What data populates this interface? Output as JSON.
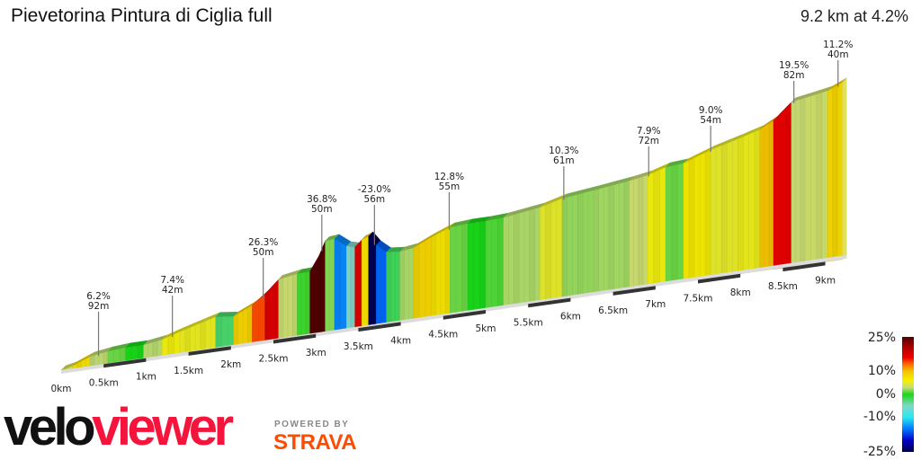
{
  "header": {
    "title": "Pievetorina Pintura di Ciglia full",
    "summary": "9.2 km at 4.2%"
  },
  "branding": {
    "logo_part1": "velo",
    "logo_part2": "viewer",
    "powered_by": "POWERED BY",
    "strava": "STRAVA"
  },
  "chart_data": {
    "type": "area",
    "title": "Pievetorina Pintura di Ciglia full",
    "distance_km": 9.2,
    "avg_gradient_pct": 4.2,
    "profile": [
      [
        0,
        0
      ],
      [
        0.13,
        5
      ],
      [
        0.34,
        21
      ],
      [
        0.55,
        27
      ],
      [
        0.76,
        30
      ],
      [
        0.97,
        30
      ],
      [
        1.19,
        36
      ],
      [
        1.4,
        48
      ],
      [
        1.82,
        70
      ],
      [
        2.03,
        65
      ],
      [
        2.25,
        84
      ],
      [
        2.4,
        105
      ],
      [
        2.56,
        133
      ],
      [
        2.78,
        140
      ],
      [
        2.93,
        141
      ],
      [
        3.04,
        174
      ],
      [
        3.11,
        204
      ],
      [
        3.22,
        206
      ],
      [
        3.36,
        186
      ],
      [
        3.46,
        181
      ],
      [
        3.54,
        195
      ],
      [
        3.62,
        201
      ],
      [
        3.71,
        179
      ],
      [
        3.83,
        160
      ],
      [
        3.99,
        157
      ],
      [
        4.15,
        161
      ],
      [
        4.36,
        179
      ],
      [
        4.58,
        195
      ],
      [
        4.79,
        198
      ],
      [
        5.0,
        198
      ],
      [
        5.21,
        200
      ],
      [
        5.64,
        211
      ],
      [
        5.9,
        224
      ],
      [
        6.27,
        232
      ],
      [
        6.69,
        242
      ],
      [
        6.91,
        249
      ],
      [
        7.12,
        261
      ],
      [
        7.33,
        264
      ],
      [
        7.65,
        285
      ],
      [
        7.97,
        301
      ],
      [
        8.23,
        315
      ],
      [
        8.39,
        331
      ],
      [
        8.6,
        366
      ],
      [
        8.76,
        371
      ],
      [
        9.03,
        380
      ],
      [
        9.2,
        394
      ]
    ],
    "x_ticks": [
      "0km",
      "0.5km",
      "1km",
      "1.5km",
      "2km",
      "2.5km",
      "3km",
      "3.5km",
      "4km",
      "4.5km",
      "5km",
      "5.5km",
      "6km",
      "6.5km",
      "7km",
      "7.5km",
      "8km",
      "8.5km",
      "9km"
    ],
    "annotations": [
      {
        "km": 0.44,
        "grade": "6.2%",
        "length": "92m"
      },
      {
        "km": 1.31,
        "grade": "7.4%",
        "length": "42m"
      },
      {
        "km": 2.38,
        "grade": "26.3%",
        "length": "50m"
      },
      {
        "km": 3.07,
        "grade": "36.8%",
        "length": "50m"
      },
      {
        "km": 3.69,
        "grade": "-23.0%",
        "length": "56m"
      },
      {
        "km": 4.57,
        "grade": "12.8%",
        "length": "55m"
      },
      {
        "km": 5.92,
        "grade": "10.3%",
        "length": "61m"
      },
      {
        "km": 6.92,
        "grade": "7.9%",
        "length": "72m"
      },
      {
        "km": 7.65,
        "grade": "9.0%",
        "length": "54m"
      },
      {
        "km": 8.63,
        "grade": "19.5%",
        "length": "82m"
      },
      {
        "km": 9.15,
        "grade": "11.2%",
        "length": "40m"
      }
    ],
    "legend": {
      "labels": [
        "25%",
        "10%",
        "0%",
        "-10%",
        "-25%"
      ],
      "color_stops": [
        [
          -25,
          "#000046"
        ],
        [
          -20,
          "#0000c8"
        ],
        [
          -15,
          "#0078ff"
        ],
        [
          -10,
          "#28e8f0"
        ],
        [
          -5,
          "#80d8c8"
        ],
        [
          0,
          "#18d818"
        ],
        [
          3,
          "#c8dc78"
        ],
        [
          6,
          "#f4f000"
        ],
        [
          10,
          "#f4c400"
        ],
        [
          13,
          "#ff7000"
        ],
        [
          16,
          "#f00000"
        ],
        [
          20,
          "#b80000"
        ],
        [
          25,
          "#500000"
        ]
      ]
    }
  }
}
